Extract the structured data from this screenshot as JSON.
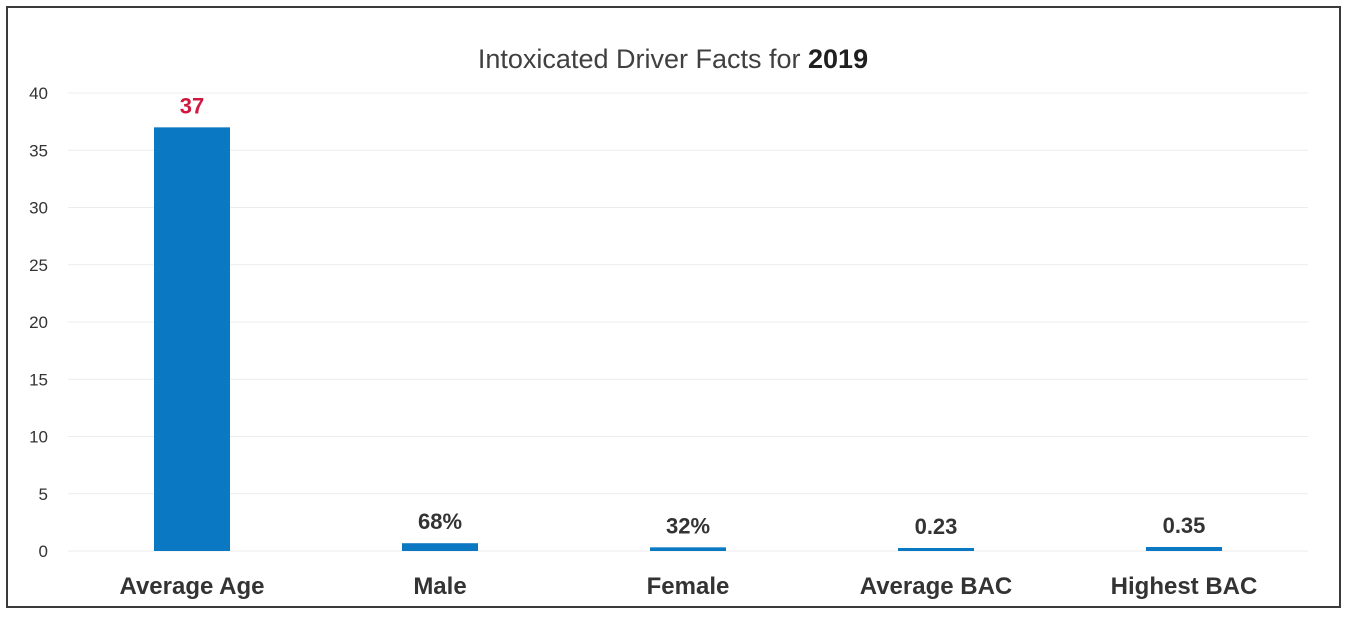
{
  "chart_data": {
    "type": "bar",
    "title": "Intoxicated Driver Facts for",
    "title_year": "2019",
    "xlabel": "",
    "ylabel": "",
    "categories": [
      "Average Age",
      "Male",
      "Female",
      "Average BAC",
      "Highest BAC"
    ],
    "values": [
      37,
      0.68,
      0.32,
      0.23,
      0.35
    ],
    "data_labels": [
      "37",
      "68%",
      "32%",
      "0.23",
      "0.35"
    ],
    "highlight_label_color": "#d1193f",
    "label_color": "#333333",
    "bar_color": "#0b78c4",
    "ylim": [
      0,
      40
    ],
    "yticks": [
      0,
      5,
      10,
      15,
      20,
      25,
      30,
      35,
      40
    ],
    "grid": true,
    "legend": "none"
  }
}
